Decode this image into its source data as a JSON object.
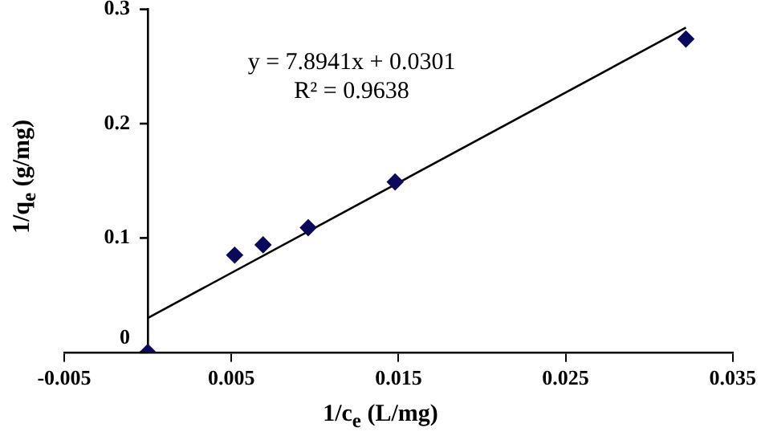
{
  "chart_data": {
    "type": "scatter",
    "xlabel": "1/c$_{e}$ (L/mg)",
    "ylabel": "1/q$_{e}$ (g/mg)",
    "annotations": [
      "y = 7.8941x + 0.0301",
      "R² = 0.9638"
    ],
    "series": [
      {
        "color": "#0a0a5c",
        "x": [
          0,
          0.0052,
          0.0069,
          0.0096,
          0.0148,
          0.0322
        ],
        "values": [
          0,
          0.085,
          0.094,
          0.109,
          0.149,
          0.274
        ]
      },
      {
        "type": "line",
        "marker": "none",
        "color": "#000000",
        "x": [
          0,
          0.0322
        ],
        "values": [
          0.03,
          0.284
        ]
      }
    ],
    "xlim": [
      -0.005,
      0.035
    ],
    "xticks": [
      -0.005,
      0.005,
      0.015,
      0.025,
      0.035
    ],
    "ylim": [
      0,
      0.3
    ],
    "yticks": [
      0,
      0.1,
      0.2,
      0.3
    ],
    "marker": "diamond",
    "grid": false,
    "legend": false
  }
}
